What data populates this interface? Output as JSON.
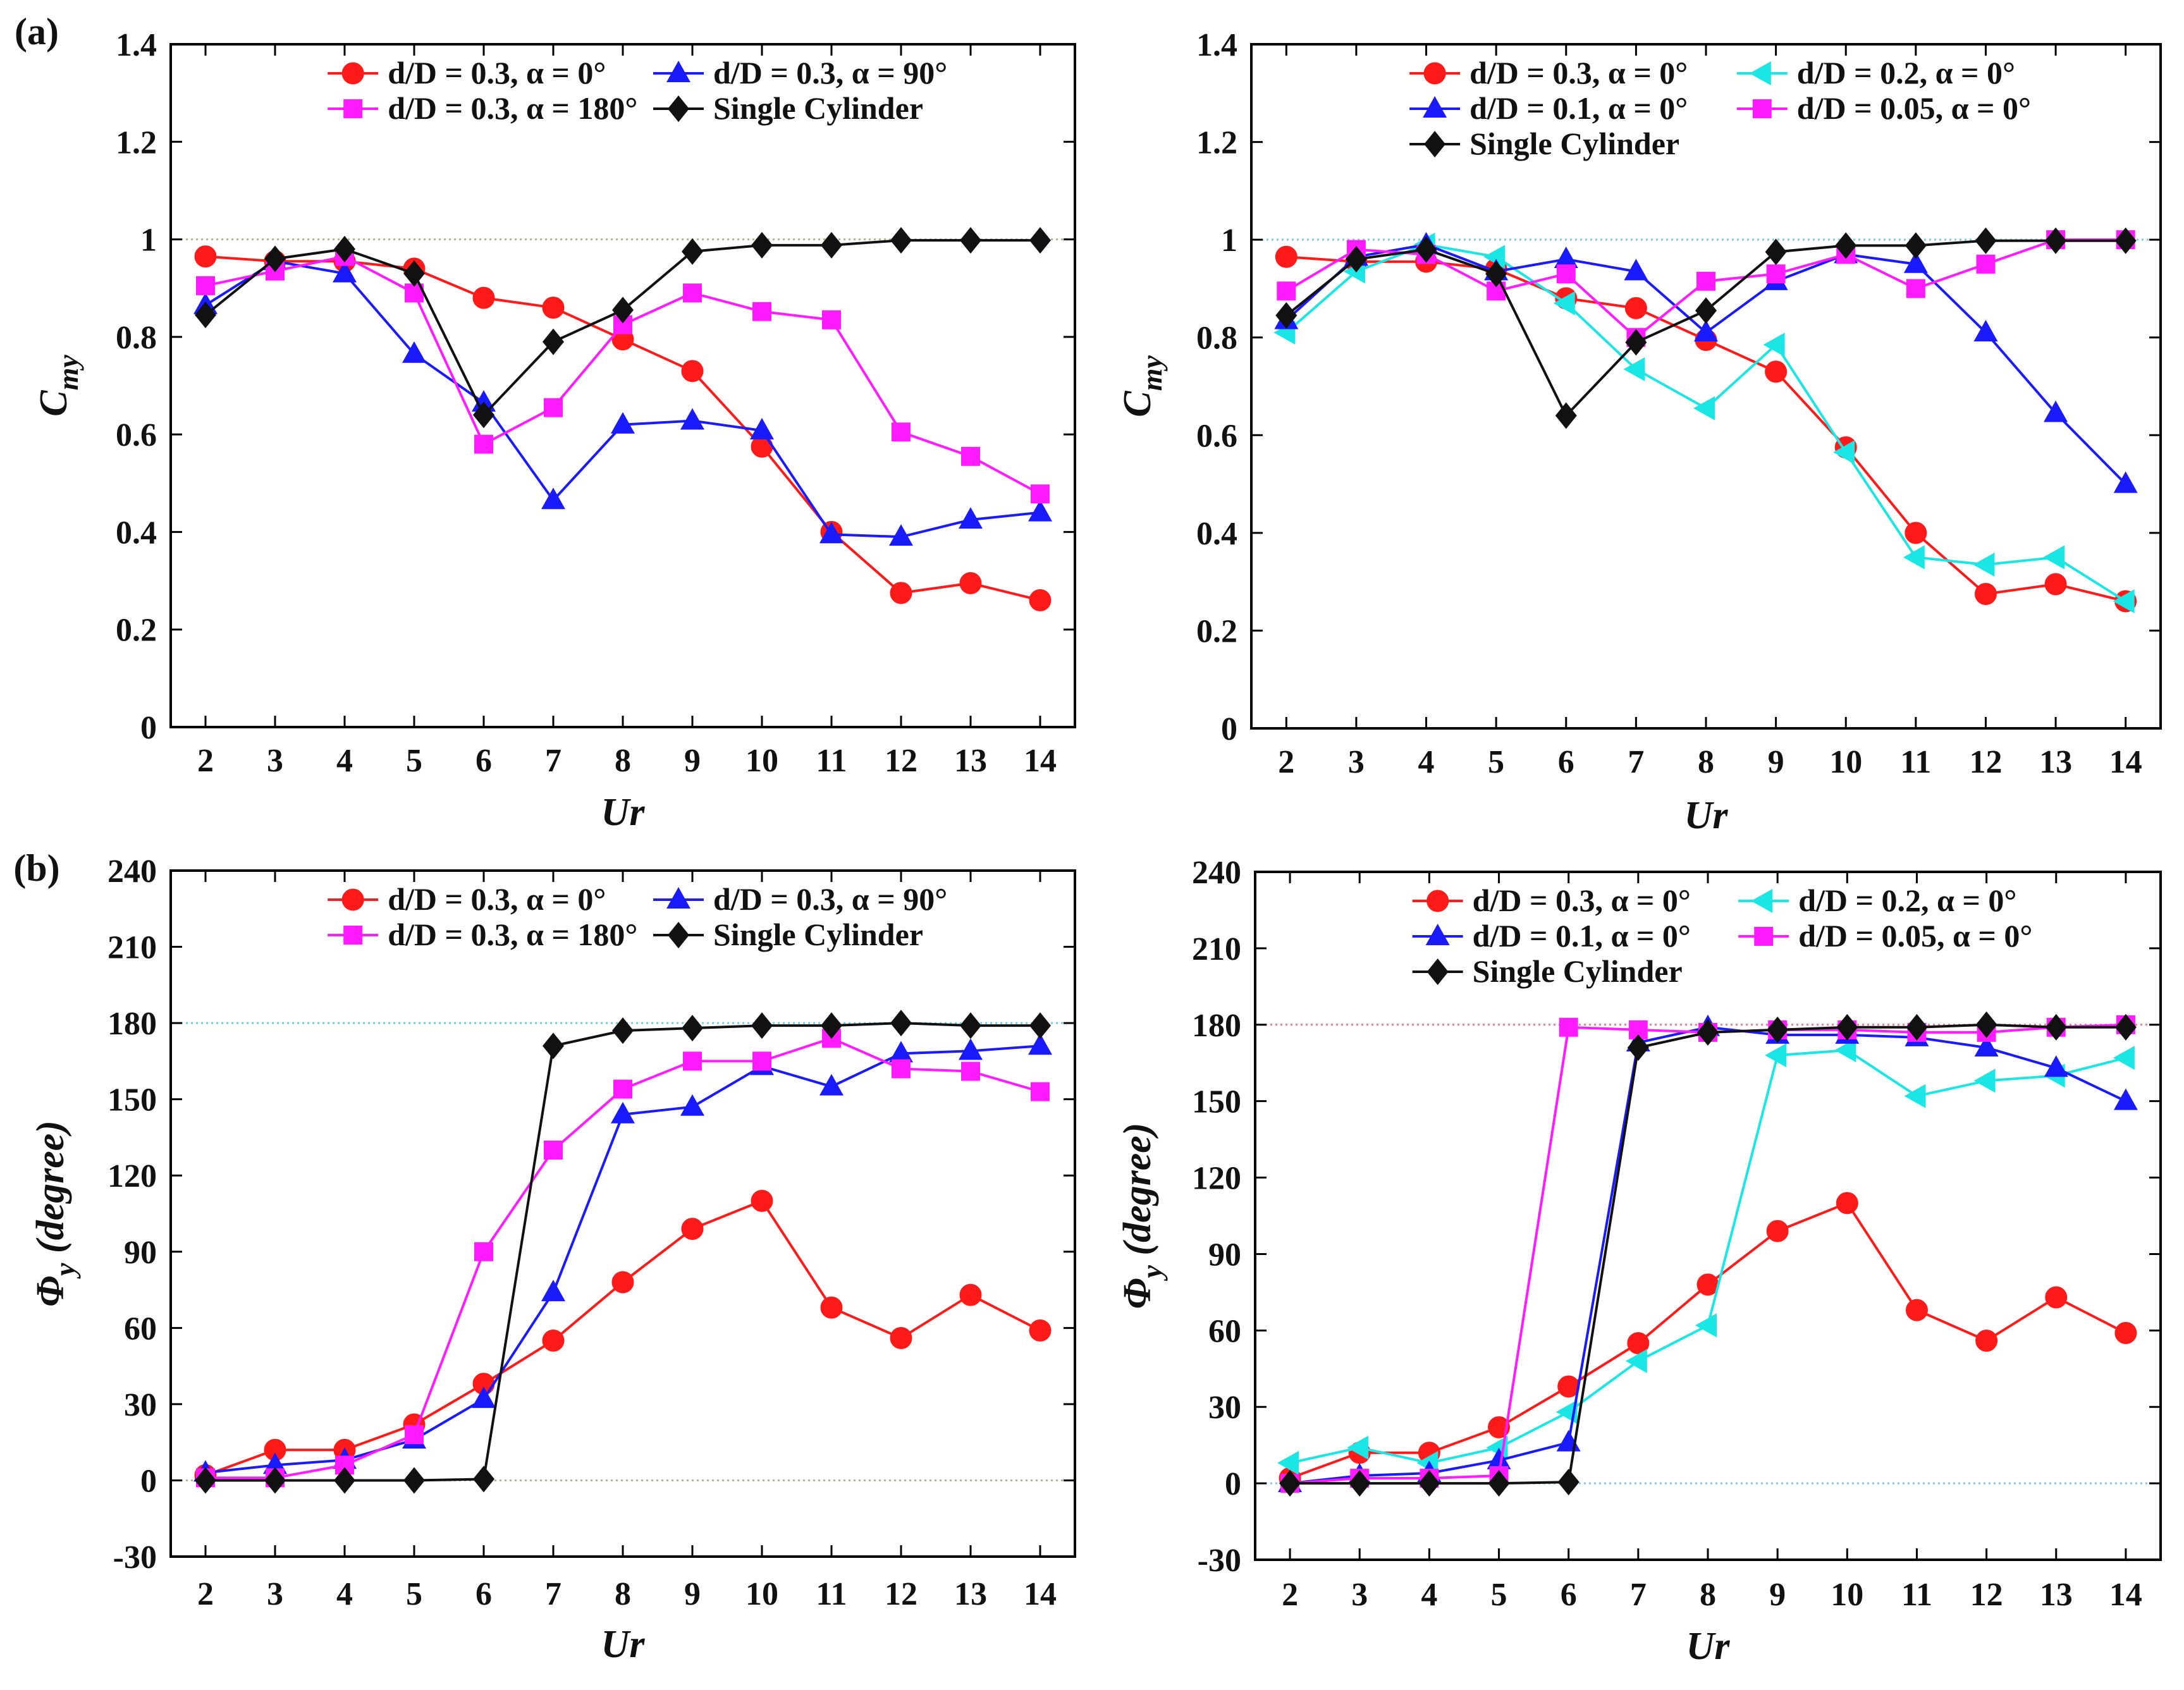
{
  "figure": {
    "panel_labels": [
      "(a)",
      "(b)"
    ]
  },
  "chart_data": [
    {
      "id": "a-left",
      "type": "line",
      "panel_label": "(a)",
      "xlabel": "Ur",
      "ylabel_main": "C",
      "ylabel_sub": "my",
      "xlim": [
        1.5,
        14.5
      ],
      "ylim": [
        0,
        1.4
      ],
      "x_ticks": [
        2,
        3,
        4,
        5,
        6,
        7,
        8,
        9,
        10,
        11,
        12,
        13,
        14
      ],
      "y_ticks": [
        0,
        0.2,
        0.4,
        0.6,
        0.8,
        1,
        1.2,
        1.4
      ],
      "y_tick_labels": [
        "0",
        "0.2",
        "0.4",
        "0.6",
        "0.8",
        "1",
        "1.2",
        "1.4"
      ],
      "ref_line": {
        "y": 1,
        "color": "#b8b08a"
      },
      "legend": {
        "position": "top",
        "columns": 2
      },
      "series": [
        {
          "name": "d/D = 0.3,  α = 0°",
          "color": "#ff1a1a",
          "marker": "circle",
          "x": [
            2,
            3,
            4,
            5,
            6,
            7,
            8,
            9,
            10,
            11,
            12,
            13,
            14
          ],
          "y": [
            0.965,
            0.955,
            0.955,
            0.94,
            0.88,
            0.86,
            0.795,
            0.73,
            0.575,
            0.4,
            0.275,
            0.295,
            0.26
          ]
        },
        {
          "name": "d/D = 0.3,  α = 90°",
          "color": "#1a1aff",
          "marker": "triangle",
          "x": [
            2,
            3,
            4,
            5,
            6,
            7,
            8,
            9,
            10,
            11,
            12,
            13,
            14
          ],
          "y": [
            0.865,
            0.955,
            0.93,
            0.765,
            0.665,
            0.465,
            0.62,
            0.628,
            0.608,
            0.395,
            0.39,
            0.425,
            0.44
          ]
        },
        {
          "name": "d/D = 0.3,  α = 180°",
          "color": "#ff1aff",
          "marker": "square",
          "x": [
            2,
            3,
            4,
            5,
            6,
            7,
            8,
            9,
            10,
            11,
            12,
            13,
            14
          ],
          "y": [
            0.905,
            0.935,
            0.965,
            0.89,
            0.58,
            0.655,
            0.825,
            0.89,
            0.852,
            0.835,
            0.605,
            0.555,
            0.478
          ]
        },
        {
          "name": "Single Cylinder",
          "color": "#111111",
          "marker": "diamond",
          "x": [
            2,
            3,
            4,
            5,
            6,
            7,
            8,
            9,
            10,
            11,
            12,
            13,
            14
          ],
          "y": [
            0.845,
            0.96,
            0.98,
            0.93,
            0.64,
            0.79,
            0.855,
            0.975,
            0.988,
            0.988,
            0.998,
            0.998,
            0.998
          ]
        }
      ]
    },
    {
      "id": "a-right",
      "type": "line",
      "panel_label": "",
      "xlabel": "Ur",
      "ylabel_main": "C",
      "ylabel_sub": "my",
      "xlim": [
        1.5,
        14.5
      ],
      "ylim": [
        0,
        1.4
      ],
      "x_ticks": [
        2,
        3,
        4,
        5,
        6,
        7,
        8,
        9,
        10,
        11,
        12,
        13,
        14
      ],
      "y_ticks": [
        0,
        0.2,
        0.4,
        0.6,
        0.8,
        1,
        1.2,
        1.4
      ],
      "y_tick_labels": [
        "0",
        "0.2",
        "0.4",
        "0.6",
        "0.8",
        "1",
        "1.2",
        "1.4"
      ],
      "ref_line": {
        "y": 1,
        "color": "#7fc8e6"
      },
      "legend": {
        "position": "top",
        "columns": 2
      },
      "series": [
        {
          "name": "d/D = 0.3,    α = 0°",
          "color": "#ff1a1a",
          "marker": "circle",
          "x": [
            2,
            3,
            4,
            5,
            6,
            7,
            8,
            9,
            10,
            11,
            12,
            13,
            14
          ],
          "y": [
            0.965,
            0.955,
            0.955,
            0.94,
            0.88,
            0.86,
            0.795,
            0.73,
            0.575,
            0.4,
            0.275,
            0.295,
            0.26
          ]
        },
        {
          "name": "d/D = 0.2,    α = 0°",
          "color": "#1ae6e6",
          "marker": "triangle-left",
          "x": [
            2,
            3,
            4,
            5,
            6,
            7,
            8,
            9,
            10,
            11,
            12,
            13,
            14
          ],
          "y": [
            0.81,
            0.935,
            0.99,
            0.965,
            0.87,
            0.735,
            0.655,
            0.785,
            0.565,
            0.35,
            0.335,
            0.35,
            0.26
          ]
        },
        {
          "name": "d/D = 0.1,    α = 0°",
          "color": "#1a1aff",
          "marker": "triangle",
          "x": [
            2,
            3,
            4,
            5,
            6,
            7,
            8,
            9,
            10,
            11,
            12,
            13,
            14
          ],
          "y": [
            0.835,
            0.965,
            0.99,
            0.935,
            0.96,
            0.935,
            0.81,
            0.915,
            0.97,
            0.95,
            0.81,
            0.645,
            0.5
          ]
        },
        {
          "name": "d/D = 0.05,  α = 0°",
          "color": "#ff1aff",
          "marker": "square",
          "x": [
            2,
            3,
            4,
            5,
            6,
            7,
            8,
            9,
            10,
            11,
            12,
            13,
            14
          ],
          "y": [
            0.895,
            0.98,
            0.97,
            0.895,
            0.93,
            0.8,
            0.915,
            0.93,
            0.97,
            0.9,
            0.95,
            1.0,
            1.0
          ]
        },
        {
          "name": "Single Cylinder",
          "color": "#111111",
          "marker": "diamond",
          "x": [
            2,
            3,
            4,
            5,
            6,
            7,
            8,
            9,
            10,
            11,
            12,
            13,
            14
          ],
          "y": [
            0.845,
            0.96,
            0.98,
            0.93,
            0.64,
            0.79,
            0.855,
            0.975,
            0.988,
            0.988,
            0.998,
            0.998,
            0.998
          ]
        }
      ]
    },
    {
      "id": "b-left",
      "type": "line",
      "panel_label": "(b)",
      "xlabel": "Ur",
      "ylabel_main": "Φ",
      "ylabel_sub": "y",
      "ylabel_tail": " (degree)",
      "xlim": [
        1.5,
        14.5
      ],
      "ylim": [
        -30,
        240
      ],
      "x_ticks": [
        2,
        3,
        4,
        5,
        6,
        7,
        8,
        9,
        10,
        11,
        12,
        13,
        14
      ],
      "y_ticks": [
        -30,
        0,
        30,
        60,
        90,
        120,
        150,
        180,
        210,
        240
      ],
      "y_tick_labels": [
        "-30",
        "0",
        "30",
        "60",
        "90",
        "120",
        "150",
        "180",
        "210",
        "240"
      ],
      "ref_lines": [
        {
          "y": 180,
          "color": "#7fc8e6"
        },
        {
          "y": 0,
          "color": "#b8b08a"
        }
      ],
      "legend": {
        "position": "top",
        "columns": 2
      },
      "series": [
        {
          "name": "d/D = 0.3,  α = 0°",
          "color": "#ff1a1a",
          "marker": "circle",
          "x": [
            2,
            3,
            4,
            5,
            6,
            7,
            8,
            9,
            10,
            11,
            12,
            13,
            14
          ],
          "y": [
            2,
            12,
            12,
            22,
            38,
            55,
            78,
            99,
            110,
            68,
            56,
            73,
            59
          ]
        },
        {
          "name": "d/D = 0.3,  α = 90°",
          "color": "#1a1aff",
          "marker": "triangle",
          "x": [
            2,
            3,
            4,
            5,
            6,
            7,
            8,
            9,
            10,
            11,
            12,
            13,
            14
          ],
          "y": [
            3,
            6,
            8,
            16,
            32,
            74,
            144,
            147,
            163,
            155,
            168,
            169,
            171
          ]
        },
        {
          "name": "d/D = 0.3,  α = 180°",
          "color": "#ff1aff",
          "marker": "square",
          "x": [
            2,
            3,
            4,
            5,
            6,
            7,
            8,
            9,
            10,
            11,
            12,
            13,
            14
          ],
          "y": [
            1,
            1,
            6,
            18,
            90,
            130,
            154,
            165,
            165,
            174,
            162,
            161,
            153
          ]
        },
        {
          "name": "Single Cylinder",
          "color": "#111111",
          "marker": "diamond",
          "x": [
            2,
            3,
            4,
            5,
            6,
            7,
            8,
            9,
            10,
            11,
            12,
            13,
            14
          ],
          "y": [
            0,
            0,
            0,
            0,
            0.5,
            171,
            177,
            178,
            179,
            179,
            180,
            179,
            179
          ]
        }
      ]
    },
    {
      "id": "b-right",
      "type": "line",
      "panel_label": "",
      "xlabel": "Ur",
      "ylabel_main": "Φ",
      "ylabel_sub": "y",
      "ylabel_tail": " (degree)",
      "xlim": [
        1.5,
        14.5
      ],
      "ylim": [
        -30,
        240
      ],
      "x_ticks": [
        2,
        3,
        4,
        5,
        6,
        7,
        8,
        9,
        10,
        11,
        12,
        13,
        14
      ],
      "y_ticks": [
        -30,
        0,
        30,
        60,
        90,
        120,
        150,
        180,
        210,
        240
      ],
      "y_tick_labels": [
        "-30",
        "0",
        "30",
        "60",
        "90",
        "120",
        "150",
        "180",
        "210",
        "240"
      ],
      "ref_lines": [
        {
          "y": 180,
          "color": "#e6809a"
        },
        {
          "y": 0,
          "color": "#7fc8e6"
        }
      ],
      "legend": {
        "position": "top",
        "columns": 2
      },
      "series": [
        {
          "name": "d/D = 0.3,    α = 0°",
          "color": "#ff1a1a",
          "marker": "circle",
          "x": [
            2,
            3,
            4,
            5,
            6,
            7,
            8,
            9,
            10,
            11,
            12,
            13,
            14
          ],
          "y": [
            2,
            12,
            12,
            22,
            38,
            55,
            78,
            99,
            110,
            68,
            56,
            73,
            59
          ]
        },
        {
          "name": "d/D = 0.2,    α = 0°",
          "color": "#1ae6e6",
          "marker": "triangle-left",
          "x": [
            2,
            3,
            4,
            5,
            6,
            7,
            8,
            9,
            10,
            11,
            12,
            13,
            14
          ],
          "y": [
            8,
            14,
            8,
            14,
            28,
            48,
            62,
            168,
            170,
            152,
            158,
            160,
            167
          ]
        },
        {
          "name": "d/D = 0.1,    α = 0°",
          "color": "#1a1aff",
          "marker": "triangle",
          "x": [
            2,
            3,
            4,
            5,
            6,
            7,
            8,
            9,
            10,
            11,
            12,
            13,
            14
          ],
          "y": [
            0,
            3,
            4,
            9,
            16,
            173,
            179,
            176,
            176,
            175,
            171,
            163,
            150
          ]
        },
        {
          "name": "d/D = 0.05,  α = 0°",
          "color": "#ff1aff",
          "marker": "square",
          "x": [
            2,
            3,
            4,
            5,
            6,
            7,
            8,
            9,
            10,
            11,
            12,
            13,
            14
          ],
          "y": [
            0,
            2,
            2,
            3,
            179,
            178,
            177,
            178,
            178,
            177,
            177,
            179,
            180
          ]
        },
        {
          "name": "Single Cylinder",
          "color": "#111111",
          "marker": "diamond",
          "x": [
            2,
            3,
            4,
            5,
            6,
            7,
            8,
            9,
            10,
            11,
            12,
            13,
            14
          ],
          "y": [
            0,
            0,
            0,
            0,
            0.5,
            171,
            177,
            178,
            179,
            179,
            180,
            179,
            179
          ]
        }
      ]
    }
  ]
}
